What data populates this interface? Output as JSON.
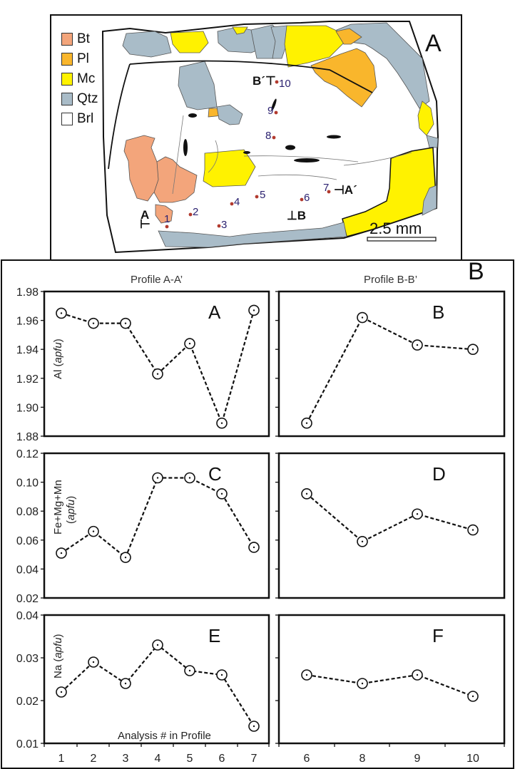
{
  "figure_a": {
    "panel_label": "A",
    "legend": [
      {
        "label": "Bt",
        "color": "#f3a57b"
      },
      {
        "label": "Pl",
        "color": "#f9b62c"
      },
      {
        "label": "Mc",
        "color": "#fff200"
      },
      {
        "label": "Qtz",
        "color": "#a9bcc8"
      },
      {
        "label": "Brl",
        "color": "#ffffff"
      }
    ],
    "scale_bar": "2.5 mm",
    "profile_markers": [
      "A",
      "A´",
      "B",
      "B´"
    ],
    "analysis_points": [
      "1",
      "2",
      "3",
      "4",
      "5",
      "6",
      "7",
      "8",
      "9",
      "10"
    ]
  },
  "figure_b": {
    "panel_label": "B",
    "profile_left_title": "Profile A-A’",
    "profile_right_title": "Profile B-B’",
    "x_axis_label": "Analysis # in Profile"
  },
  "chart_data": [
    {
      "type": "line",
      "panel": "A",
      "title": "Profile A-A’",
      "ylabel": "Al (apfu)",
      "xlabel": "",
      "x": [
        1,
        2,
        3,
        4,
        5,
        6,
        7
      ],
      "values": [
        1.965,
        1.958,
        1.958,
        1.923,
        1.944,
        1.889,
        1.967
      ],
      "ylim": [
        1.88,
        1.98
      ],
      "yticks": [
        "1.98",
        "1.96",
        "1.94",
        "1.92",
        "1.90",
        "1.88"
      ],
      "grid": false,
      "line_style": "dashed",
      "marker": "open-circle"
    },
    {
      "type": "line",
      "panel": "B",
      "title": "Profile B-B’",
      "ylabel": "Al (apfu)",
      "xlabel": "",
      "categories": [
        "6",
        "8",
        "9",
        "10"
      ],
      "values": [
        1.889,
        1.962,
        1.943,
        1.94
      ],
      "ylim": [
        1.88,
        1.98
      ],
      "grid": false,
      "line_style": "dashed",
      "marker": "open-circle"
    },
    {
      "type": "line",
      "panel": "C",
      "ylabel": "Fe+Mg+Mn (apfu)",
      "x": [
        1,
        2,
        3,
        4,
        5,
        6,
        7
      ],
      "values": [
        0.051,
        0.066,
        0.048,
        0.103,
        0.103,
        0.092,
        0.055
      ],
      "ylim": [
        0.02,
        0.12
      ],
      "yticks": [
        "0.12",
        "0.10",
        "0.08",
        "0.06",
        "0.04",
        "0.02"
      ],
      "grid": false,
      "line_style": "dashed",
      "marker": "open-circle"
    },
    {
      "type": "line",
      "panel": "D",
      "ylabel": "Fe+Mg+Mn (apfu)",
      "categories": [
        "6",
        "8",
        "9",
        "10"
      ],
      "values": [
        0.092,
        0.059,
        0.078,
        0.067
      ],
      "ylim": [
        0.02,
        0.12
      ],
      "grid": false,
      "line_style": "dashed",
      "marker": "open-circle"
    },
    {
      "type": "line",
      "panel": "E",
      "ylabel": "Na (apfu)",
      "xlabel": "Analysis # in Profile",
      "x": [
        1,
        2,
        3,
        4,
        5,
        6,
        7
      ],
      "values": [
        0.022,
        0.029,
        0.024,
        0.033,
        0.027,
        0.026,
        0.014
      ],
      "ylim": [
        0.01,
        0.04
      ],
      "yticks": [
        "0.04",
        "0.03",
        "0.02",
        "0.01"
      ],
      "xticks": [
        "1",
        "2",
        "3",
        "4",
        "5",
        "6",
        "7"
      ],
      "grid": false,
      "line_style": "dashed",
      "marker": "open-circle"
    },
    {
      "type": "line",
      "panel": "F",
      "ylabel": "Na (apfu)",
      "xlabel": "Analysis # in Profile",
      "categories": [
        "6",
        "8",
        "9",
        "10"
      ],
      "values": [
        0.026,
        0.024,
        0.026,
        0.021
      ],
      "ylim": [
        0.01,
        0.04
      ],
      "xticks": [
        "6",
        "8",
        "9",
        "10"
      ],
      "grid": false,
      "line_style": "dashed",
      "marker": "open-circle"
    }
  ]
}
